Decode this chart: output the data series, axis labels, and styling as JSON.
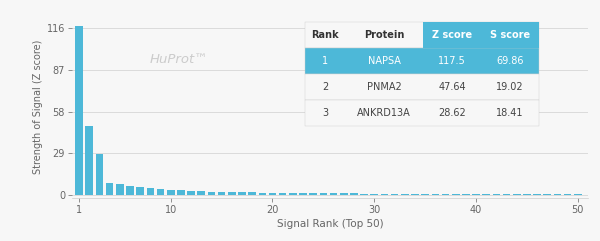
{
  "bar_color": "#4db8d8",
  "background_color": "#f7f7f7",
  "watermark": "HuProt™",
  "xlabel": "Signal Rank (Top 50)",
  "ylabel": "Strength of Signal (Z score)",
  "yticks": [
    0,
    29,
    58,
    87,
    116
  ],
  "xticks": [
    1,
    10,
    20,
    30,
    40,
    50
  ],
  "xlim": [
    0.3,
    51
  ],
  "ylim": [
    -2,
    124
  ],
  "n_bars": 50,
  "bar_values": [
    117.5,
    47.64,
    28.62,
    8.5,
    7.2,
    6.1,
    5.2,
    4.5,
    3.9,
    3.4,
    3.0,
    2.7,
    2.4,
    2.2,
    2.0,
    1.85,
    1.7,
    1.6,
    1.5,
    1.4,
    1.3,
    1.2,
    1.15,
    1.1,
    1.05,
    1.0,
    0.95,
    0.9,
    0.87,
    0.84,
    0.81,
    0.78,
    0.75,
    0.72,
    0.7,
    0.68,
    0.66,
    0.64,
    0.62,
    0.6,
    0.58,
    0.56,
    0.54,
    0.52,
    0.5,
    0.48,
    0.46,
    0.44,
    0.42,
    0.4
  ],
  "table": {
    "headers": [
      "Rank",
      "Protein",
      "Z score",
      "S score"
    ],
    "rows": [
      [
        "1",
        "NAPSA",
        "117.5",
        "69.86"
      ],
      [
        "2",
        "PNMA2",
        "47.64",
        "19.02"
      ],
      [
        "3",
        "ANKRD13A",
        "28.62",
        "18.41"
      ]
    ],
    "header_highlight_bg": "#4db8d8",
    "header_highlight_text": "#ffffff",
    "header_normal_text": "#333333",
    "row1_bg": "#4db8d8",
    "row1_text": "#ffffff",
    "row_alt_bg": "#f0f0f0",
    "row_normal_bg": "#ffffff",
    "row_text": "#444444",
    "border_color": "#cccccc",
    "font_size": 7.0
  }
}
